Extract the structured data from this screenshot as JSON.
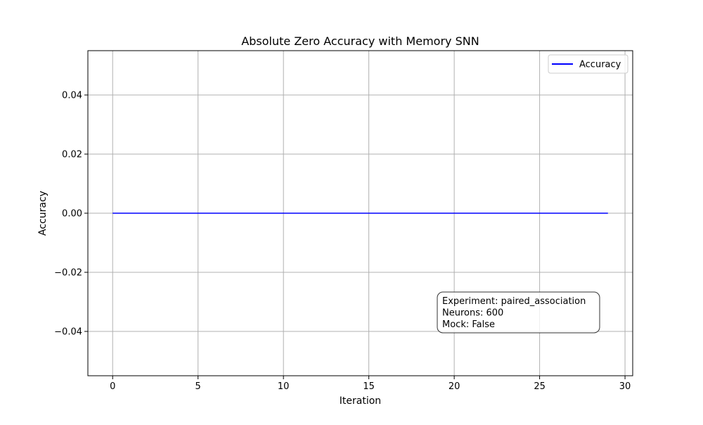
{
  "chart_data": {
    "type": "line",
    "title": "Absolute Zero Accuracy with Memory SNN",
    "xlabel": "Iteration",
    "ylabel": "Accuracy",
    "xlim": [
      -1.45,
      30.45
    ],
    "ylim": [
      -0.055,
      0.055
    ],
    "xticks": [
      0,
      5,
      10,
      15,
      20,
      25,
      30
    ],
    "xtick_labels": [
      "0",
      "5",
      "10",
      "15",
      "20",
      "25",
      "30"
    ],
    "yticks": [
      -0.04,
      -0.02,
      0.0,
      0.02,
      0.04
    ],
    "ytick_labels": [
      "−0.04",
      "−0.02",
      "0.00",
      "0.02",
      "0.04"
    ],
    "grid": true,
    "legend_position": "top-right",
    "series": [
      {
        "name": "Accuracy",
        "color": "#0000ff",
        "x": [
          0,
          1,
          2,
          3,
          4,
          5,
          6,
          7,
          8,
          9,
          10,
          11,
          12,
          13,
          14,
          15,
          16,
          17,
          18,
          19,
          20,
          21,
          22,
          23,
          24,
          25,
          26,
          27,
          28,
          29
        ],
        "values": [
          0,
          0,
          0,
          0,
          0,
          0,
          0,
          0,
          0,
          0,
          0,
          0,
          0,
          0,
          0,
          0,
          0,
          0,
          0,
          0,
          0,
          0,
          0,
          0,
          0,
          0,
          0,
          0,
          0,
          0
        ]
      }
    ],
    "annotation": {
      "lines": [
        "Experiment: paired_association",
        "Neurons: 600",
        "Mock: False"
      ]
    }
  }
}
